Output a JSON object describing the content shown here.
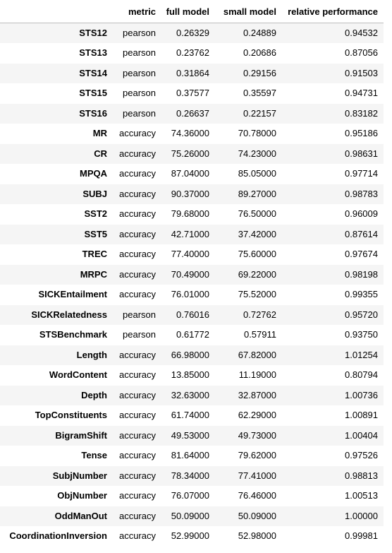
{
  "table": {
    "columns": [
      "metric",
      "full model",
      "small model",
      "relative performance"
    ],
    "rows": [
      {
        "name": "STS12",
        "metric": "pearson",
        "full": "0.26329",
        "small": "0.24889",
        "rel": "0.94532"
      },
      {
        "name": "STS13",
        "metric": "pearson",
        "full": "0.23762",
        "small": "0.20686",
        "rel": "0.87056"
      },
      {
        "name": "STS14",
        "metric": "pearson",
        "full": "0.31864",
        "small": "0.29156",
        "rel": "0.91503"
      },
      {
        "name": "STS15",
        "metric": "pearson",
        "full": "0.37577",
        "small": "0.35597",
        "rel": "0.94731"
      },
      {
        "name": "STS16",
        "metric": "pearson",
        "full": "0.26637",
        "small": "0.22157",
        "rel": "0.83182"
      },
      {
        "name": "MR",
        "metric": "accuracy",
        "full": "74.36000",
        "small": "70.78000",
        "rel": "0.95186"
      },
      {
        "name": "CR",
        "metric": "accuracy",
        "full": "75.26000",
        "small": "74.23000",
        "rel": "0.98631"
      },
      {
        "name": "MPQA",
        "metric": "accuracy",
        "full": "87.04000",
        "small": "85.05000",
        "rel": "0.97714"
      },
      {
        "name": "SUBJ",
        "metric": "accuracy",
        "full": "90.37000",
        "small": "89.27000",
        "rel": "0.98783"
      },
      {
        "name": "SST2",
        "metric": "accuracy",
        "full": "79.68000",
        "small": "76.50000",
        "rel": "0.96009"
      },
      {
        "name": "SST5",
        "metric": "accuracy",
        "full": "42.71000",
        "small": "37.42000",
        "rel": "0.87614"
      },
      {
        "name": "TREC",
        "metric": "accuracy",
        "full": "77.40000",
        "small": "75.60000",
        "rel": "0.97674"
      },
      {
        "name": "MRPC",
        "metric": "accuracy",
        "full": "70.49000",
        "small": "69.22000",
        "rel": "0.98198"
      },
      {
        "name": "SICKEntailment",
        "metric": "accuracy",
        "full": "76.01000",
        "small": "75.52000",
        "rel": "0.99355"
      },
      {
        "name": "SICKRelatedness",
        "metric": "pearson",
        "full": "0.76016",
        "small": "0.72762",
        "rel": "0.95720"
      },
      {
        "name": "STSBenchmark",
        "metric": "pearson",
        "full": "0.61772",
        "small": "0.57911",
        "rel": "0.93750"
      },
      {
        "name": "Length",
        "metric": "accuracy",
        "full": "66.98000",
        "small": "67.82000",
        "rel": "1.01254"
      },
      {
        "name": "WordContent",
        "metric": "accuracy",
        "full": "13.85000",
        "small": "11.19000",
        "rel": "0.80794"
      },
      {
        "name": "Depth",
        "metric": "accuracy",
        "full": "32.63000",
        "small": "32.87000",
        "rel": "1.00736"
      },
      {
        "name": "TopConstituents",
        "metric": "accuracy",
        "full": "61.74000",
        "small": "62.29000",
        "rel": "1.00891"
      },
      {
        "name": "BigramShift",
        "metric": "accuracy",
        "full": "49.53000",
        "small": "49.73000",
        "rel": "1.00404"
      },
      {
        "name": "Tense",
        "metric": "accuracy",
        "full": "81.64000",
        "small": "79.62000",
        "rel": "0.97526"
      },
      {
        "name": "SubjNumber",
        "metric": "accuracy",
        "full": "78.34000",
        "small": "77.41000",
        "rel": "0.98813"
      },
      {
        "name": "ObjNumber",
        "metric": "accuracy",
        "full": "76.07000",
        "small": "76.46000",
        "rel": "1.00513"
      },
      {
        "name": "OddManOut",
        "metric": "accuracy",
        "full": "50.09000",
        "small": "50.09000",
        "rel": "1.00000"
      },
      {
        "name": "CoordinationInversion",
        "metric": "accuracy",
        "full": "52.99000",
        "small": "52.98000",
        "rel": "0.99981"
      }
    ]
  }
}
